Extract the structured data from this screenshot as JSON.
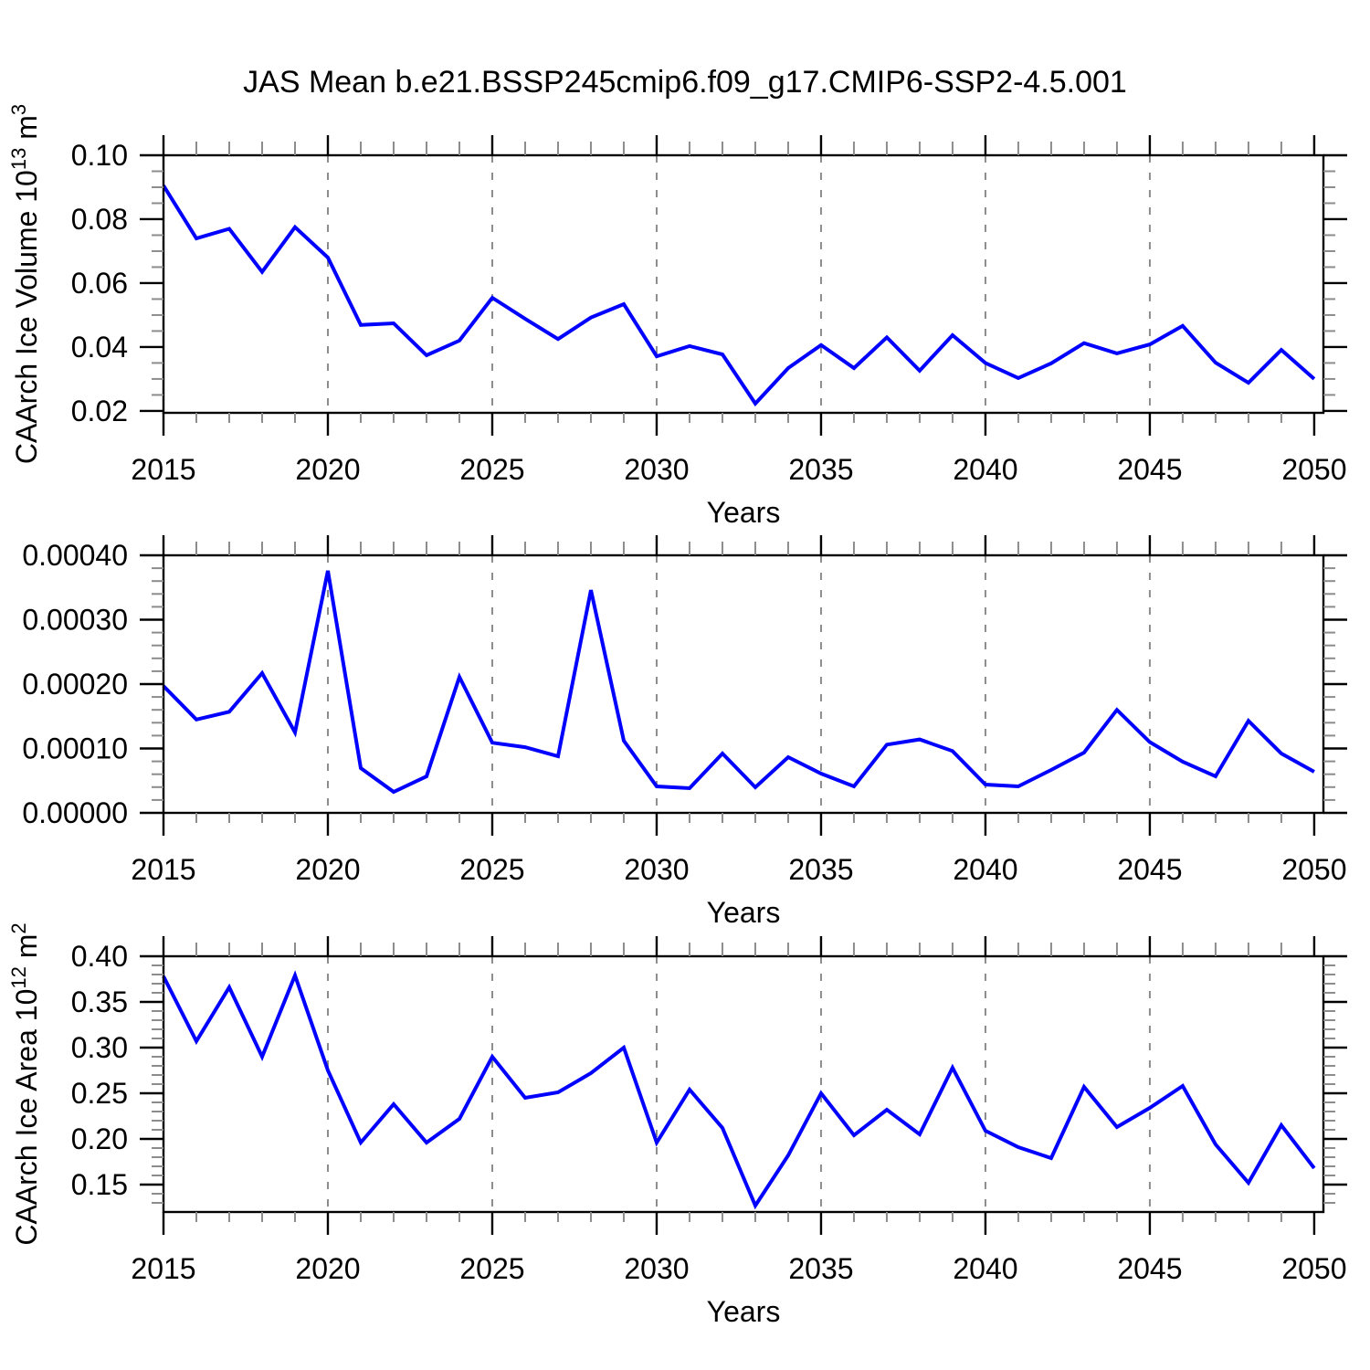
{
  "title": "JAS Mean b.e21.BSSP245cmip6.f09_g17.CMIP6-SSP2-4.5.001",
  "colors": {
    "line": "#0000ff",
    "grid": "#8c8c8c",
    "axis": "#000000",
    "minor_tick": "#8c8c8c",
    "text": "#000000",
    "background": "#ffffff"
  },
  "chart_data": {
    "type": "line",
    "figure_title": "JAS Mean b.e21.BSSP245cmip6.f09_g17.CMIP6-SSP2-4.5.001",
    "x_label": "Years",
    "years": [
      2015,
      2016,
      2017,
      2018,
      2019,
      2020,
      2021,
      2022,
      2023,
      2024,
      2025,
      2026,
      2027,
      2028,
      2029,
      2030,
      2031,
      2032,
      2033,
      2034,
      2035,
      2036,
      2037,
      2038,
      2039,
      2040,
      2041,
      2042,
      2043,
      2044,
      2045,
      2046,
      2047,
      2048,
      2049,
      2050
    ],
    "xlim": [
      2015,
      2050.28
    ],
    "x_major_ticks": [
      2015,
      2020,
      2025,
      2030,
      2035,
      2040,
      2045,
      2050
    ],
    "x_tick_labels": [
      "2015",
      "2020",
      "2025",
      "2030",
      "2035",
      "2040",
      "2045",
      "2050"
    ],
    "x_minor_step": 1,
    "grid_years": [
      2020,
      2025,
      2030,
      2035,
      2040,
      2045
    ],
    "grid_style": "dashed",
    "legend": null,
    "panels": [
      {
        "id": "ice-volume",
        "ylabel": "CAArch Ice Volume 10^13 m^3",
        "ylabel_parts": [
          {
            "t": "CAArch Ice Volume 10",
            "sup": false
          },
          {
            "t": "13",
            "sup": true
          },
          {
            "t": " m",
            "sup": false
          },
          {
            "t": "3",
            "sup": true
          }
        ],
        "xlabel": "Years",
        "ylim": [
          0.0194,
          0.1
        ],
        "y_major_ticks": [
          0.02,
          0.04,
          0.06,
          0.08,
          0.1
        ],
        "y_tick_labels": [
          "0.02",
          "0.04",
          "0.06",
          "0.08",
          "0.10"
        ],
        "y_minor_step": 0.005,
        "values": [
          0.0905,
          0.074,
          0.077,
          0.0635,
          0.0775,
          0.068,
          0.0469,
          0.0474,
          0.0374,
          0.042,
          0.0554,
          0.0488,
          0.0425,
          0.0492,
          0.0534,
          0.0371,
          0.0403,
          0.0377,
          0.0223,
          0.0334,
          0.0406,
          0.0334,
          0.043,
          0.0326,
          0.0437,
          0.035,
          0.0303,
          0.0349,
          0.0412,
          0.038,
          0.0408,
          0.0466,
          0.0351,
          0.0288,
          0.0391,
          0.03
        ]
      },
      {
        "id": "ice-metric",
        "ylabel": "",
        "ylabel_parts": [],
        "xlabel": "Years",
        "ylim": [
          0.0,
          0.0004
        ],
        "y_major_ticks": [
          0.0,
          0.0001,
          0.0002,
          0.0003,
          0.0004
        ],
        "y_tick_labels": [
          "0.00000",
          "0.00010",
          "0.00020",
          "0.00030",
          "0.00040"
        ],
        "y_minor_step": 2e-05,
        "values": [
          0.000197,
          0.000145,
          0.000157,
          0.000217,
          0.000125,
          0.000376,
          6.95e-05,
          3.26e-05,
          5.67e-05,
          0.000211,
          0.000109,
          0.000102,
          8.8e-05,
          0.000346,
          0.000112,
          4.11e-05,
          3.83e-05,
          9.22e-05,
          3.97e-05,
          8.65e-05,
          6.1e-05,
          4.11e-05,
          0.000106,
          0.000114,
          9.6e-05,
          4.4e-05,
          4.11e-05,
          6.66e-05,
          9.36e-05,
          0.00016,
          0.00011,
          7.94e-05,
          5.67e-05,
          0.000143,
          9.22e-05,
          6.38e-05
        ]
      },
      {
        "id": "ice-area",
        "ylabel": "CAArch Ice Area 10^12 m^2",
        "ylabel_parts": [
          {
            "t": "CAArch Ice Area 10",
            "sup": false
          },
          {
            "t": "12",
            "sup": true
          },
          {
            "t": " m",
            "sup": false
          },
          {
            "t": "2",
            "sup": true
          }
        ],
        "xlabel": "Years",
        "ylim": [
          0.12,
          0.4
        ],
        "y_major_ticks": [
          0.15,
          0.2,
          0.25,
          0.3,
          0.35,
          0.4
        ],
        "y_tick_labels": [
          "0.15",
          "0.20",
          "0.25",
          "0.30",
          "0.35",
          "0.40"
        ],
        "y_minor_step": 0.01,
        "values": [
          0.378,
          0.307,
          0.366,
          0.29,
          0.379,
          0.275,
          0.196,
          0.238,
          0.196,
          0.222,
          0.29,
          0.245,
          0.251,
          0.272,
          0.3,
          0.196,
          0.254,
          0.212,
          0.127,
          0.182,
          0.25,
          0.204,
          0.232,
          0.205,
          0.278,
          0.209,
          0.191,
          0.179,
          0.257,
          0.213,
          0.234,
          0.258,
          0.194,
          0.152,
          0.215,
          0.168
        ]
      }
    ]
  }
}
